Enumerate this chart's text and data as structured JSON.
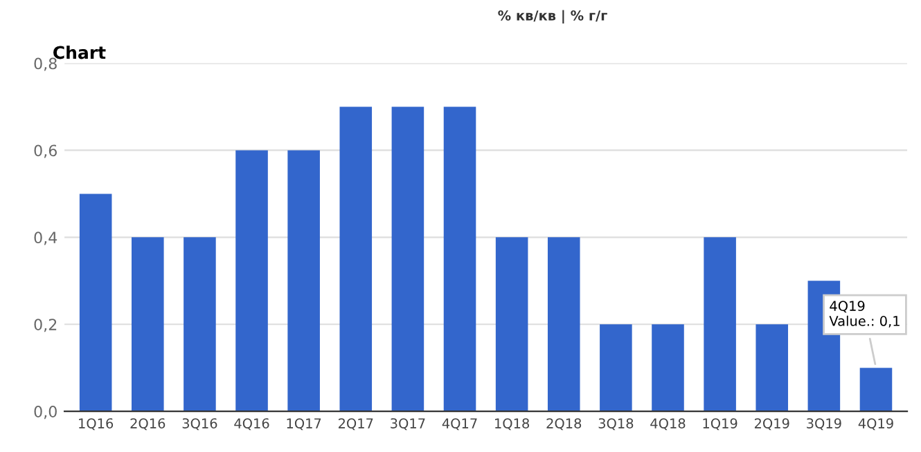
{
  "chart_data": {
    "type": "bar",
    "title": "Chart",
    "annotations": [
      "% кв/кв | % г/г",
      {
        "text": "4Q19\nValue.: 0,1",
        "x": "4Q19",
        "y": 0.1
      }
    ],
    "categories": [
      "1Q16",
      "2Q16",
      "3Q16",
      "4Q16",
      "1Q17",
      "2Q17",
      "3Q17",
      "4Q17",
      "1Q18",
      "2Q18",
      "3Q18",
      "4Q18",
      "1Q19",
      "2Q19",
      "3Q19",
      "4Q19"
    ],
    "values": [
      0.5,
      0.4,
      0.4,
      0.6,
      0.6,
      0.7,
      0.7,
      0.7,
      0.4,
      0.4,
      0.2,
      0.2,
      0.4,
      0.2,
      0.3,
      0.1
    ],
    "color": "#3366cc",
    "ylim": [
      0,
      0.8
    ],
    "yticks": [
      {
        "value": 0,
        "label": "0,0"
      },
      {
        "value": 0.2,
        "label": "0,2"
      },
      {
        "value": 0.4,
        "label": "0,4"
      },
      {
        "value": 0.6,
        "label": "0,6"
      },
      {
        "value": 0.8,
        "label": "0,8"
      }
    ],
    "grid": "y"
  }
}
